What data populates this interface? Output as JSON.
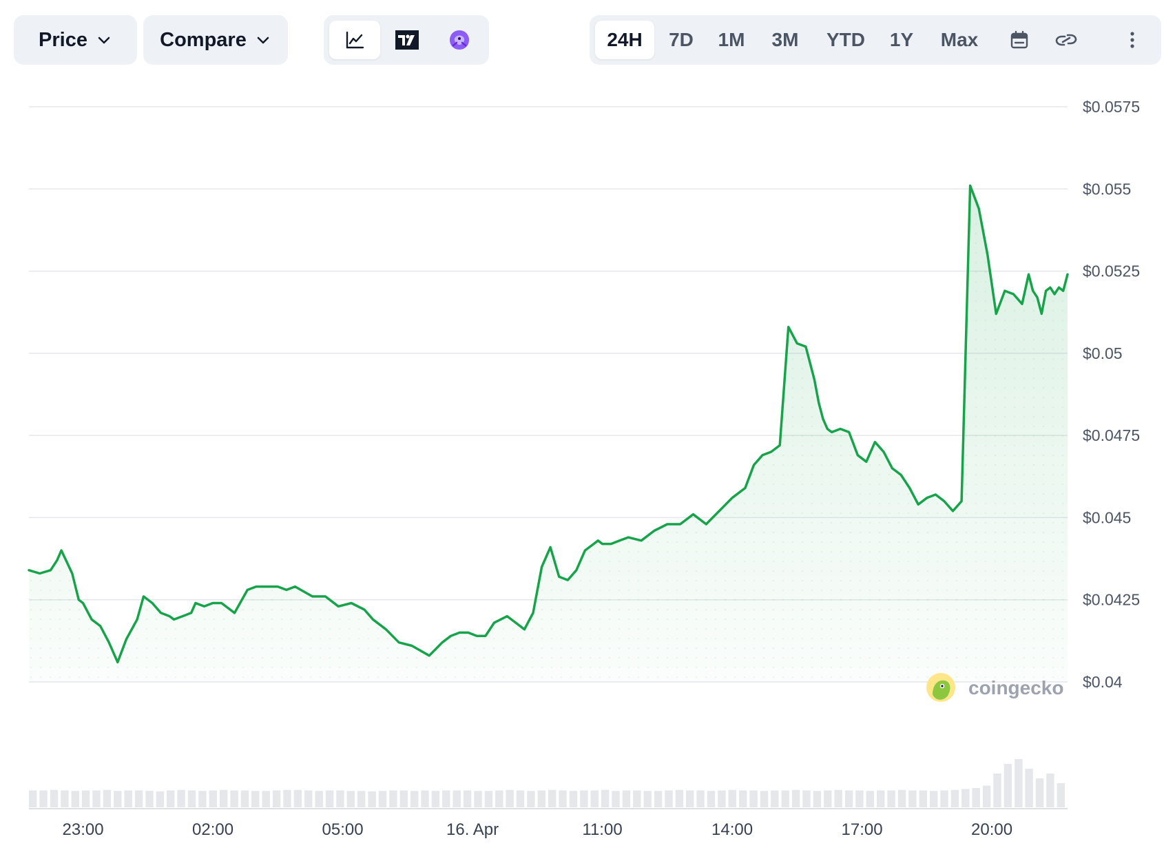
{
  "toolbar": {
    "price_label": "Price",
    "compare_label": "Compare",
    "chart_types": [
      {
        "name": "line-chart-icon",
        "active": true
      },
      {
        "name": "tradingview-icon",
        "active": false
      },
      {
        "name": "gecko-terminal-icon",
        "active": false
      }
    ],
    "ranges": [
      "24H",
      "7D",
      "1M",
      "3M",
      "YTD",
      "1Y",
      "Max"
    ],
    "active_range": "24H",
    "icons": [
      "calendar-icon",
      "link-icon",
      "more-options-icon"
    ]
  },
  "watermark": "coingecko",
  "colors": {
    "line": "#16a34a",
    "fill": "#16a34a",
    "grid": "#e5e7eb"
  },
  "chart_data": {
    "type": "area",
    "title": "",
    "xlabel": "",
    "ylabel": "",
    "ylim": [
      0.04,
      0.0575
    ],
    "y_ticks": [
      0.0575,
      0.055,
      0.0525,
      0.05,
      0.0475,
      0.045,
      0.0425,
      0.04
    ],
    "y_tick_labels": [
      "$0.0575",
      "$0.055",
      "$0.0525",
      "$0.05",
      "$0.0475",
      "$0.045",
      "$0.0425",
      "$0.04"
    ],
    "x_ticks": [
      1,
      4,
      7,
      10,
      13,
      16,
      19,
      22
    ],
    "x_tick_labels": [
      "23:00",
      "02:00",
      "05:00",
      "16. Apr",
      "11:00",
      "14:00",
      "17:00",
      "20:00"
    ],
    "xlim": [
      -0.25,
      23.75
    ],
    "x_unit": "hours after 22:00 on 15 Apr",
    "grid": true,
    "series": [
      {
        "x": [
          -0.25,
          0.0,
          0.25,
          0.4,
          0.5,
          0.75,
          0.9,
          1.0,
          1.2,
          1.4,
          1.6,
          1.8,
          2.0,
          2.25,
          2.4,
          2.6,
          2.8,
          3.0,
          3.1,
          3.3,
          3.5,
          3.6,
          3.8,
          4.0,
          4.2,
          4.5,
          4.8,
          5.0,
          5.2,
          5.5,
          5.7,
          5.9,
          6.3,
          6.6,
          6.9,
          7.2,
          7.5,
          7.7,
          8.0,
          8.3,
          8.6,
          9.0,
          9.3,
          9.5,
          9.7,
          9.9,
          10.1,
          10.3,
          10.5,
          10.8,
          11.0,
          11.2,
          11.4,
          11.6,
          11.8,
          12.0,
          12.2,
          12.4,
          12.6,
          12.8,
          12.9,
          13.0,
          13.2,
          13.4,
          13.6,
          13.9,
          14.2,
          14.5,
          14.8,
          15.1,
          15.4,
          15.7,
          16.0,
          16.3,
          16.5,
          16.7,
          16.9,
          17.1,
          17.3,
          17.5,
          17.7,
          17.9,
          18.0,
          18.1,
          18.2,
          18.3,
          18.5,
          18.7,
          18.9,
          19.1,
          19.3,
          19.5,
          19.7,
          19.9,
          20.1,
          20.3,
          20.5,
          20.7,
          20.9,
          21.1,
          21.3,
          21.5,
          21.7,
          21.9,
          22.1,
          22.3,
          22.5,
          22.7,
          22.85,
          22.95,
          23.05,
          23.15,
          23.25,
          23.35,
          23.45,
          23.55,
          23.65,
          23.75
        ],
        "y": [
          0.0434,
          0.0433,
          0.0434,
          0.0437,
          0.044,
          0.0433,
          0.0425,
          0.0424,
          0.0419,
          0.0417,
          0.0412,
          0.0406,
          0.0413,
          0.0419,
          0.0426,
          0.0424,
          0.0421,
          0.042,
          0.0419,
          0.042,
          0.0421,
          0.0424,
          0.0423,
          0.0424,
          0.0424,
          0.0421,
          0.0428,
          0.0429,
          0.0429,
          0.0429,
          0.0428,
          0.0429,
          0.0426,
          0.0426,
          0.0423,
          0.0424,
          0.0422,
          0.0419,
          0.0416,
          0.0412,
          0.0411,
          0.0408,
          0.0412,
          0.0414,
          0.0415,
          0.0415,
          0.0414,
          0.0414,
          0.0418,
          0.042,
          0.0418,
          0.0416,
          0.0421,
          0.0435,
          0.0441,
          0.0432,
          0.0431,
          0.0434,
          0.044,
          0.0442,
          0.0443,
          0.0442,
          0.0442,
          0.0443,
          0.0444,
          0.0443,
          0.0446,
          0.0448,
          0.0448,
          0.0451,
          0.0448,
          0.0452,
          0.0456,
          0.0459,
          0.0466,
          0.0469,
          0.047,
          0.0472,
          0.0508,
          0.0503,
          0.0502,
          0.0492,
          0.0485,
          0.048,
          0.0477,
          0.0476,
          0.0477,
          0.0476,
          0.0469,
          0.0467,
          0.0473,
          0.047,
          0.0465,
          0.0463,
          0.0459,
          0.0454,
          0.0456,
          0.0457,
          0.0455,
          0.0452,
          0.0455,
          0.0551,
          0.0544,
          0.053,
          0.0512,
          0.0519,
          0.0518,
          0.0515,
          0.0524,
          0.0519,
          0.0517,
          0.0512,
          0.0519,
          0.052,
          0.0518,
          0.052,
          0.0519,
          0.0524
        ]
      }
    ],
    "volume": {
      "note": "volume bars along the bottom, relative heights",
      "values_relative": [
        0.35,
        0.35,
        0.36,
        0.35,
        0.34,
        0.35,
        0.35,
        0.36,
        0.34,
        0.35,
        0.35,
        0.34,
        0.33,
        0.35,
        0.36,
        0.35,
        0.34,
        0.35,
        0.36,
        0.35,
        0.35,
        0.34,
        0.34,
        0.35,
        0.36,
        0.36,
        0.35,
        0.34,
        0.35,
        0.35,
        0.34,
        0.34,
        0.33,
        0.34,
        0.35,
        0.35,
        0.34,
        0.35,
        0.34,
        0.35,
        0.35,
        0.35,
        0.34,
        0.34,
        0.35,
        0.36,
        0.35,
        0.34,
        0.35,
        0.36,
        0.35,
        0.34,
        0.35,
        0.35,
        0.36,
        0.34,
        0.35,
        0.35,
        0.34,
        0.34,
        0.35,
        0.36,
        0.35,
        0.35,
        0.34,
        0.35,
        0.36,
        0.35,
        0.35,
        0.34,
        0.35,
        0.35,
        0.36,
        0.35,
        0.34,
        0.35,
        0.36,
        0.35,
        0.35,
        0.34,
        0.35,
        0.35,
        0.36,
        0.35,
        0.35,
        0.34,
        0.35,
        0.36,
        0.38,
        0.4,
        0.45,
        0.7,
        0.9,
        1.0,
        0.8,
        0.6,
        0.7,
        0.5
      ]
    }
  }
}
